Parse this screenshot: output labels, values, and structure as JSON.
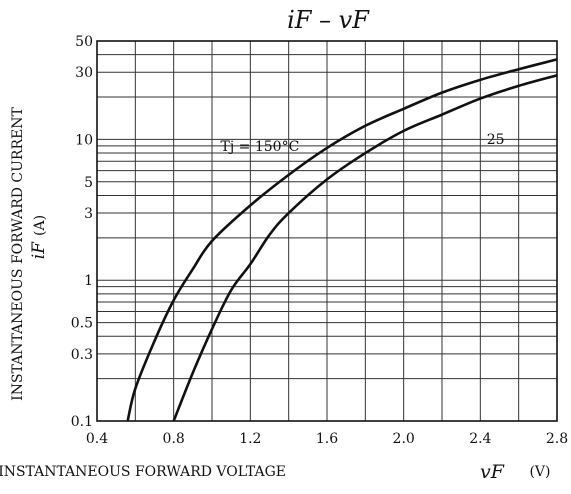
{
  "chart_data": {
    "type": "line",
    "title": "iF – vF",
    "xlabel": "INSTANTANEOUS FORWARD VOLTAGE",
    "xlabel_symbol": "vF",
    "xlabel_unit": "(V)",
    "ylabel": "INSTANTANEOUS FORWARD CURRENT",
    "ylabel_symbol": "iF",
    "ylabel_unit": "(A)",
    "xlim": [
      0.4,
      2.8
    ],
    "ylim": [
      0.1,
      50
    ],
    "yscale": "log",
    "grid": true,
    "x_ticks": [
      "0.4",
      "0.8",
      "1.2",
      "1.6",
      "2.0",
      "2.4",
      "2.8"
    ],
    "y_ticks": [
      "0.1",
      "0.3",
      "0.5",
      "1",
      "3",
      "5",
      "10",
      "30",
      "50"
    ],
    "series": [
      {
        "name": "Tj = 150°C",
        "label": "Tj = 150°C",
        "points": [
          [
            0.56,
            0.1
          ],
          [
            0.6,
            0.17
          ],
          [
            0.7,
            0.37
          ],
          [
            0.8,
            0.72
          ],
          [
            0.9,
            1.2
          ],
          [
            1.0,
            1.9
          ],
          [
            1.2,
            3.4
          ],
          [
            1.4,
            5.6
          ],
          [
            1.6,
            8.7
          ],
          [
            1.8,
            12.5
          ],
          [
            2.0,
            16.5
          ],
          [
            2.2,
            21.5
          ],
          [
            2.4,
            26.5
          ],
          [
            2.6,
            31.5
          ],
          [
            2.8,
            37
          ]
        ]
      },
      {
        "name": "25",
        "label": "25",
        "points": [
          [
            0.8,
            0.1
          ],
          [
            0.9,
            0.22
          ],
          [
            1.0,
            0.45
          ],
          [
            1.1,
            0.85
          ],
          [
            1.2,
            1.3
          ],
          [
            1.3,
            2.1
          ],
          [
            1.4,
            3.0
          ],
          [
            1.6,
            5.2
          ],
          [
            1.8,
            8.0
          ],
          [
            2.0,
            11.5
          ],
          [
            2.2,
            15.0
          ],
          [
            2.4,
            19.5
          ],
          [
            2.6,
            24.0
          ],
          [
            2.8,
            28.5
          ]
        ]
      }
    ]
  }
}
